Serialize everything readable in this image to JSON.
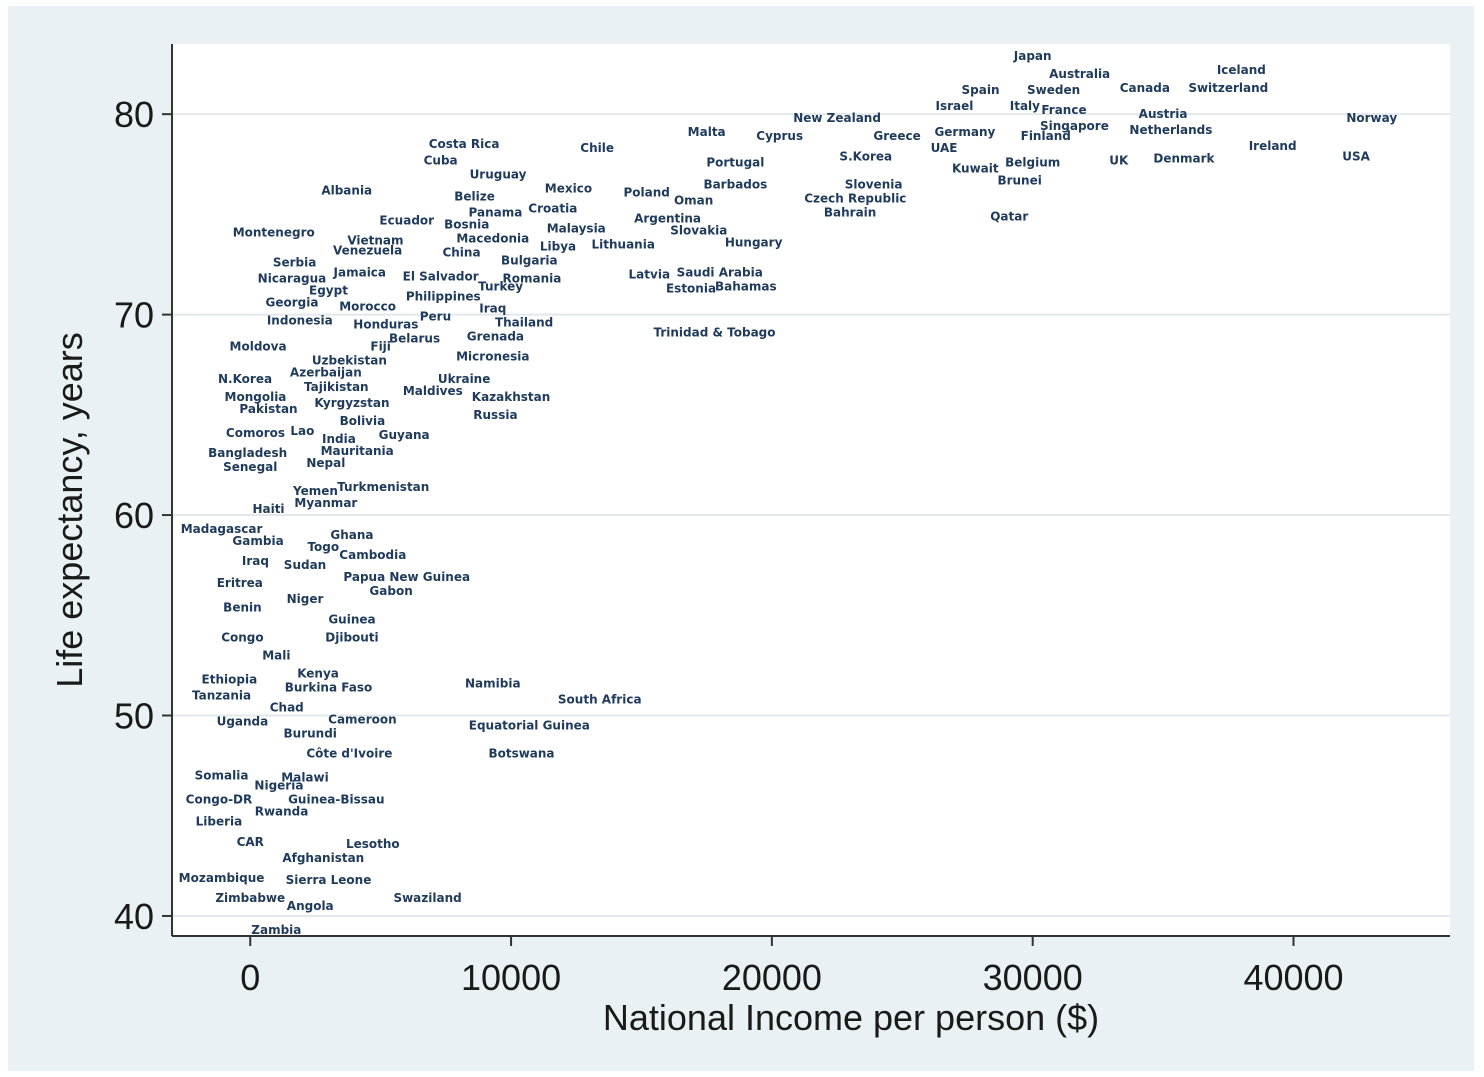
{
  "chart_data": {
    "type": "scatter",
    "title": "",
    "xlabel": "National Income per person ($)",
    "ylabel": "Life expectancy, years",
    "xlim": [
      -3000,
      46000
    ],
    "ylim": [
      39,
      83.5
    ],
    "xticks": [
      0,
      10000,
      20000,
      30000,
      40000
    ],
    "yticks": [
      40,
      50,
      60,
      70,
      80
    ],
    "grid": "horizontal",
    "colors": {
      "label": "#1f3a5a",
      "plot_bg": "#ffffff",
      "panel_bg": "#eaf1f4",
      "grid": "#e2e8ec",
      "axis": "#333333"
    },
    "points": [
      {
        "label": "Japan",
        "x": 30000,
        "y": 82.9
      },
      {
        "label": "Australia",
        "x": 31800,
        "y": 82.0
      },
      {
        "label": "Iceland",
        "x": 38000,
        "y": 82.2
      },
      {
        "label": "Spain",
        "x": 28000,
        "y": 81.2
      },
      {
        "label": "Sweden",
        "x": 30800,
        "y": 81.2
      },
      {
        "label": "Canada",
        "x": 34300,
        "y": 81.3
      },
      {
        "label": "Switzerland",
        "x": 37500,
        "y": 81.3
      },
      {
        "label": "Israel",
        "x": 27000,
        "y": 80.4
      },
      {
        "label": "Italy",
        "x": 29700,
        "y": 80.4
      },
      {
        "label": "France",
        "x": 31200,
        "y": 80.2
      },
      {
        "label": "Austria",
        "x": 35000,
        "y": 80.0
      },
      {
        "label": "New Zealand",
        "x": 22500,
        "y": 79.8
      },
      {
        "label": "Norway",
        "x": 43000,
        "y": 79.8
      },
      {
        "label": "Singapore",
        "x": 31600,
        "y": 79.4
      },
      {
        "label": "Netherlands",
        "x": 35300,
        "y": 79.2
      },
      {
        "label": "Malta",
        "x": 17500,
        "y": 79.1
      },
      {
        "label": "Cyprus",
        "x": 20300,
        "y": 78.9
      },
      {
        "label": "Greece",
        "x": 24800,
        "y": 78.9
      },
      {
        "label": "Germany",
        "x": 27400,
        "y": 79.1
      },
      {
        "label": "Finland",
        "x": 30500,
        "y": 78.9
      },
      {
        "label": "Costa Rica",
        "x": 8200,
        "y": 78.5
      },
      {
        "label": "Chile",
        "x": 13300,
        "y": 78.3
      },
      {
        "label": "UAE",
        "x": 26600,
        "y": 78.3
      },
      {
        "label": "Ireland",
        "x": 39200,
        "y": 78.4
      },
      {
        "label": "Cuba",
        "x": 7300,
        "y": 77.7
      },
      {
        "label": "Portugal",
        "x": 18600,
        "y": 77.6
      },
      {
        "label": "S.Korea",
        "x": 23600,
        "y": 77.9
      },
      {
        "label": "Belgium",
        "x": 30000,
        "y": 77.6
      },
      {
        "label": "UK",
        "x": 33300,
        "y": 77.7
      },
      {
        "label": "Denmark",
        "x": 35800,
        "y": 77.8
      },
      {
        "label": "USA",
        "x": 42400,
        "y": 77.9
      },
      {
        "label": "Kuwait",
        "x": 27800,
        "y": 77.3
      },
      {
        "label": "Uruguay",
        "x": 9500,
        "y": 77.0
      },
      {
        "label": "Brunei",
        "x": 29500,
        "y": 76.7
      },
      {
        "label": "Barbados",
        "x": 18600,
        "y": 76.5
      },
      {
        "label": "Slovenia",
        "x": 23900,
        "y": 76.5
      },
      {
        "label": "Albania",
        "x": 3700,
        "y": 76.2
      },
      {
        "label": "Mexico",
        "x": 12200,
        "y": 76.3
      },
      {
        "label": "Poland",
        "x": 15200,
        "y": 76.1
      },
      {
        "label": "Belize",
        "x": 8600,
        "y": 75.9
      },
      {
        "label": "Oman",
        "x": 17000,
        "y": 75.7
      },
      {
        "label": "Czech Republic",
        "x": 23200,
        "y": 75.8
      },
      {
        "label": "Panama",
        "x": 9400,
        "y": 75.1
      },
      {
        "label": "Croatia",
        "x": 11600,
        "y": 75.3
      },
      {
        "label": "Bahrain",
        "x": 23000,
        "y": 75.1
      },
      {
        "label": "Qatar",
        "x": 29100,
        "y": 74.9
      },
      {
        "label": "Ecuador",
        "x": 6000,
        "y": 74.7
      },
      {
        "label": "Bosnia",
        "x": 8300,
        "y": 74.5
      },
      {
        "label": "Argentina",
        "x": 16000,
        "y": 74.8
      },
      {
        "label": "Malaysia",
        "x": 12500,
        "y": 74.3
      },
      {
        "label": "Slovakia",
        "x": 17200,
        "y": 74.2
      },
      {
        "label": "Montenegro",
        "x": 900,
        "y": 74.1
      },
      {
        "label": "Vietnam",
        "x": 4800,
        "y": 73.7
      },
      {
        "label": "Macedonia",
        "x": 9300,
        "y": 73.8
      },
      {
        "label": "Hungary",
        "x": 19300,
        "y": 73.6
      },
      {
        "label": "Lithuania",
        "x": 14300,
        "y": 73.5
      },
      {
        "label": "Libya",
        "x": 11800,
        "y": 73.4
      },
      {
        "label": "Venezuela",
        "x": 4500,
        "y": 73.2
      },
      {
        "label": "China",
        "x": 8100,
        "y": 73.1
      },
      {
        "label": "Bulgaria",
        "x": 10700,
        "y": 72.7
      },
      {
        "label": "Serbia",
        "x": 1700,
        "y": 72.6
      },
      {
        "label": "Jamaica",
        "x": 4200,
        "y": 72.1
      },
      {
        "label": "El Salvador",
        "x": 7300,
        "y": 71.9
      },
      {
        "label": "Romania",
        "x": 10800,
        "y": 71.8
      },
      {
        "label": "Latvia",
        "x": 15300,
        "y": 72.0
      },
      {
        "label": "Saudi Arabia",
        "x": 18000,
        "y": 72.1
      },
      {
        "label": "Nicaragua",
        "x": 1600,
        "y": 71.8
      },
      {
        "label": "Egypt",
        "x": 3000,
        "y": 71.2
      },
      {
        "label": "Turkey",
        "x": 9600,
        "y": 71.4
      },
      {
        "label": "Estonia",
        "x": 16900,
        "y": 71.3
      },
      {
        "label": "Bahamas",
        "x": 19000,
        "y": 71.4
      },
      {
        "label": "Philippines",
        "x": 7400,
        "y": 70.9
      },
      {
        "label": "Georgia",
        "x": 1600,
        "y": 70.6
      },
      {
        "label": "Morocco",
        "x": 4500,
        "y": 70.4
      },
      {
        "label": "Iraq",
        "x": 9300,
        "y": 70.3
      },
      {
        "label": "Peru",
        "x": 7100,
        "y": 69.9
      },
      {
        "label": "Indonesia",
        "x": 1900,
        "y": 69.7
      },
      {
        "label": "Honduras",
        "x": 5200,
        "y": 69.5
      },
      {
        "label": "Thailand",
        "x": 10500,
        "y": 69.6
      },
      {
        "label": "Trinidad & Tobago",
        "x": 17800,
        "y": 69.1
      },
      {
        "label": "Grenada",
        "x": 9400,
        "y": 68.9
      },
      {
        "label": "Belarus",
        "x": 6300,
        "y": 68.8
      },
      {
        "label": "Moldova",
        "x": 300,
        "y": 68.4
      },
      {
        "label": "Fiji",
        "x": 5000,
        "y": 68.4
      },
      {
        "label": "Micronesia",
        "x": 9300,
        "y": 67.9
      },
      {
        "label": "Uzbekistan",
        "x": 3800,
        "y": 67.7
      },
      {
        "label": "Azerbaijan",
        "x": 2900,
        "y": 67.1
      },
      {
        "label": "Ukraine",
        "x": 8200,
        "y": 66.8
      },
      {
        "label": "N.Korea",
        "x": -200,
        "y": 66.8
      },
      {
        "label": "Tajikistan",
        "x": 3300,
        "y": 66.4
      },
      {
        "label": "Maldives",
        "x": 7000,
        "y": 66.2
      },
      {
        "label": "Kazakhstan",
        "x": 10000,
        "y": 65.9
      },
      {
        "label": "Mongolia",
        "x": 200,
        "y": 65.9
      },
      {
        "label": "Kyrgyzstan",
        "x": 3900,
        "y": 65.6
      },
      {
        "label": "Pakistan",
        "x": 700,
        "y": 65.3
      },
      {
        "label": "Russia",
        "x": 9400,
        "y": 65.0
      },
      {
        "label": "Bolivia",
        "x": 4300,
        "y": 64.7
      },
      {
        "label": "Comoros",
        "x": 200,
        "y": 64.1
      },
      {
        "label": "Lao",
        "x": 2000,
        "y": 64.2
      },
      {
        "label": "Guyana",
        "x": 5900,
        "y": 64.0
      },
      {
        "label": "India",
        "x": 3400,
        "y": 63.8
      },
      {
        "label": "Mauritania",
        "x": 4100,
        "y": 63.2
      },
      {
        "label": "Bangladesh",
        "x": -100,
        "y": 63.1
      },
      {
        "label": "Nepal",
        "x": 2900,
        "y": 62.6
      },
      {
        "label": "Senegal",
        "x": 0,
        "y": 62.4
      },
      {
        "label": "Turkmenistan",
        "x": 5100,
        "y": 61.4
      },
      {
        "label": "Yemen",
        "x": 2500,
        "y": 61.2
      },
      {
        "label": "Myanmar",
        "x": 2900,
        "y": 60.6
      },
      {
        "label": "Haiti",
        "x": 700,
        "y": 60.3
      },
      {
        "label": "Madagascar",
        "x": -1100,
        "y": 59.3
      },
      {
        "label": "Ghana",
        "x": 3900,
        "y": 59.0
      },
      {
        "label": "Gambia",
        "x": 300,
        "y": 58.7
      },
      {
        "label": "Togo",
        "x": 2800,
        "y": 58.4
      },
      {
        "label": "Cambodia",
        "x": 4700,
        "y": 58.0
      },
      {
        "label": "Iraq",
        "x": 200,
        "y": 57.7
      },
      {
        "label": "Sudan",
        "x": 2100,
        "y": 57.5
      },
      {
        "label": "Papua New Guinea",
        "x": 6000,
        "y": 56.9
      },
      {
        "label": "Eritrea",
        "x": -400,
        "y": 56.6
      },
      {
        "label": "Gabon",
        "x": 5400,
        "y": 56.2
      },
      {
        "label": "Niger",
        "x": 2100,
        "y": 55.8
      },
      {
        "label": "Benin",
        "x": -300,
        "y": 55.4
      },
      {
        "label": "Guinea",
        "x": 3900,
        "y": 54.8
      },
      {
        "label": "Congo",
        "x": -300,
        "y": 53.9
      },
      {
        "label": "Djibouti",
        "x": 3900,
        "y": 53.9
      },
      {
        "label": "Mali",
        "x": 1000,
        "y": 53.0
      },
      {
        "label": "Kenya",
        "x": 2600,
        "y": 52.1
      },
      {
        "label": "Ethiopia",
        "x": -800,
        "y": 51.8
      },
      {
        "label": "Namibia",
        "x": 9300,
        "y": 51.6
      },
      {
        "label": "Burkina Faso",
        "x": 3000,
        "y": 51.4
      },
      {
        "label": "Tanzania",
        "x": -1100,
        "y": 51.0
      },
      {
        "label": "South Africa",
        "x": 13400,
        "y": 50.8
      },
      {
        "label": "Chad",
        "x": 1400,
        "y": 50.4
      },
      {
        "label": "Uganda",
        "x": -300,
        "y": 49.7
      },
      {
        "label": "Cameroon",
        "x": 4300,
        "y": 49.8
      },
      {
        "label": "Equatorial Guinea",
        "x": 10700,
        "y": 49.5
      },
      {
        "label": "Burundi",
        "x": 2300,
        "y": 49.1
      },
      {
        "label": "Côte d'Ivoire",
        "x": 3800,
        "y": 48.1
      },
      {
        "label": "Botswana",
        "x": 10400,
        "y": 48.1
      },
      {
        "label": "Somalia",
        "x": -1100,
        "y": 47.0
      },
      {
        "label": "Malawi",
        "x": 2100,
        "y": 46.9
      },
      {
        "label": "Nigeria",
        "x": 1100,
        "y": 46.5
      },
      {
        "label": "Congo-DR",
        "x": -1200,
        "y": 45.8
      },
      {
        "label": "Guinea-Bissau",
        "x": 3300,
        "y": 45.8
      },
      {
        "label": "Rwanda",
        "x": 1200,
        "y": 45.2
      },
      {
        "label": "Liberia",
        "x": -1200,
        "y": 44.7
      },
      {
        "label": "CAR",
        "x": 0,
        "y": 43.7
      },
      {
        "label": "Lesotho",
        "x": 4700,
        "y": 43.6
      },
      {
        "label": "Afghanistan",
        "x": 2800,
        "y": 42.9
      },
      {
        "label": "Mozambique",
        "x": -1100,
        "y": 41.9
      },
      {
        "label": "Sierra Leone",
        "x": 3000,
        "y": 41.8
      },
      {
        "label": "Zimbabwe",
        "x": 0,
        "y": 40.9
      },
      {
        "label": "Swaziland",
        "x": 6800,
        "y": 40.9
      },
      {
        "label": "Angola",
        "x": 2300,
        "y": 40.5
      },
      {
        "label": "Zambia",
        "x": 1000,
        "y": 39.3
      }
    ]
  }
}
